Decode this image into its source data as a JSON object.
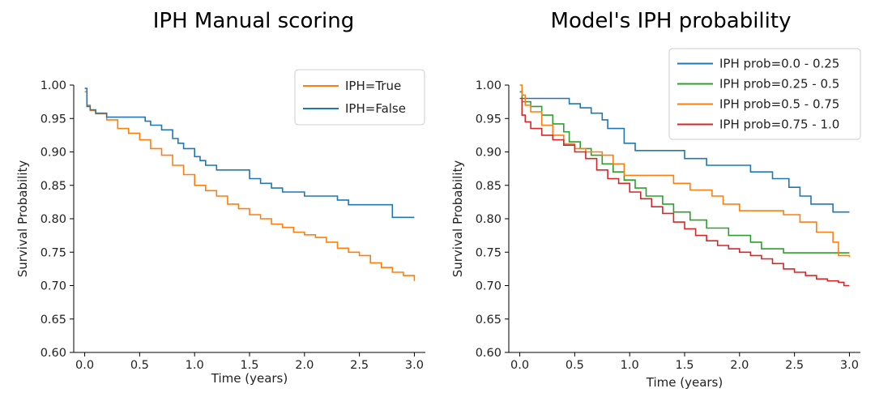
{
  "chart_data": [
    {
      "type": "line",
      "step": true,
      "title": "IPH Manual scoring",
      "xlabel": "Time (years)",
      "ylabel": "Survival Probability",
      "xlim": [
        -0.1,
        3.1
      ],
      "ylim": [
        0.6,
        1.0
      ],
      "xticks": [
        "0.0",
        "0.5",
        "1.0",
        "1.5",
        "2.0",
        "2.5",
        "3.0"
      ],
      "yticks": [
        "0.60",
        "0.65",
        "0.70",
        "0.75",
        "0.80",
        "0.85",
        "0.90",
        "0.95",
        "1.00"
      ],
      "grid": false,
      "legend": "top-right",
      "series": [
        {
          "name": "IPH=True",
          "color": "#ff7f0e",
          "x": [
            0.0,
            0.02,
            0.05,
            0.1,
            0.2,
            0.3,
            0.4,
            0.5,
            0.6,
            0.7,
            0.8,
            0.9,
            1.0,
            1.1,
            1.2,
            1.3,
            1.4,
            1.5,
            1.6,
            1.7,
            1.8,
            1.9,
            2.0,
            2.1,
            2.2,
            2.3,
            2.4,
            2.5,
            2.6,
            2.7,
            2.8,
            2.9,
            3.0
          ],
          "y": [
            0.99,
            0.97,
            0.962,
            0.957,
            0.948,
            0.935,
            0.928,
            0.918,
            0.905,
            0.895,
            0.88,
            0.866,
            0.85,
            0.842,
            0.834,
            0.822,
            0.815,
            0.806,
            0.8,
            0.792,
            0.787,
            0.78,
            0.776,
            0.772,
            0.765,
            0.756,
            0.75,
            0.745,
            0.734,
            0.727,
            0.72,
            0.715,
            0.707
          ]
        },
        {
          "name": "IPH=False",
          "color": "#1f77b4",
          "x": [
            0.0,
            0.02,
            0.05,
            0.1,
            0.2,
            0.55,
            0.6,
            0.7,
            0.8,
            0.85,
            0.9,
            1.0,
            1.05,
            1.1,
            1.2,
            1.5,
            1.6,
            1.7,
            1.8,
            2.0,
            2.3,
            2.4,
            2.8,
            3.0
          ],
          "y": [
            0.995,
            0.968,
            0.963,
            0.958,
            0.952,
            0.946,
            0.94,
            0.933,
            0.92,
            0.913,
            0.905,
            0.893,
            0.887,
            0.88,
            0.873,
            0.86,
            0.853,
            0.846,
            0.84,
            0.834,
            0.828,
            0.821,
            0.802,
            0.802
          ]
        }
      ]
    },
    {
      "type": "line",
      "step": true,
      "title": "Model's IPH probability",
      "xlabel": "Time (years)",
      "ylabel": "Survival Probability",
      "xlim": [
        -0.1,
        3.1
      ],
      "ylim": [
        0.6,
        1.0
      ],
      "xticks": [
        "0.0",
        "0.5",
        "1.0",
        "1.5",
        "2.0",
        "2.5",
        "3.0"
      ],
      "yticks": [
        "0.60",
        "0.65",
        "0.70",
        "0.75",
        "0.80",
        "0.85",
        "0.90",
        "0.95",
        "1.00"
      ],
      "grid": false,
      "legend": "upper-right",
      "series": [
        {
          "name": "IPH prob=0.0 - 0.25",
          "color": "#1f77b4",
          "x": [
            0.0,
            0.02,
            0.3,
            0.45,
            0.55,
            0.65,
            0.75,
            0.8,
            0.95,
            1.05,
            1.5,
            1.7,
            2.1,
            2.3,
            2.45,
            2.55,
            2.65,
            2.85,
            3.0
          ],
          "y": [
            0.99,
            0.98,
            0.98,
            0.972,
            0.966,
            0.958,
            0.948,
            0.935,
            0.913,
            0.902,
            0.89,
            0.88,
            0.87,
            0.86,
            0.847,
            0.834,
            0.822,
            0.81,
            0.81
          ]
        },
        {
          "name": "IPH prob=0.25 - 0.5",
          "color": "#2ca02c",
          "x": [
            0.0,
            0.02,
            0.1,
            0.2,
            0.3,
            0.4,
            0.45,
            0.55,
            0.65,
            0.75,
            0.85,
            0.95,
            1.05,
            1.15,
            1.3,
            1.4,
            1.55,
            1.7,
            1.9,
            2.1,
            2.2,
            2.4,
            2.6,
            2.8,
            3.0
          ],
          "y": [
            0.99,
            0.975,
            0.968,
            0.955,
            0.942,
            0.93,
            0.915,
            0.905,
            0.895,
            0.882,
            0.87,
            0.858,
            0.846,
            0.834,
            0.822,
            0.81,
            0.798,
            0.786,
            0.775,
            0.765,
            0.755,
            0.749,
            0.749,
            0.749,
            0.749
          ]
        },
        {
          "name": "IPH prob=0.5 - 0.75",
          "color": "#ff7f0e",
          "x": [
            0.0,
            0.02,
            0.05,
            0.1,
            0.2,
            0.3,
            0.4,
            0.5,
            0.6,
            0.75,
            0.85,
            0.95,
            1.3,
            1.4,
            1.55,
            1.75,
            1.85,
            2.0,
            2.2,
            2.4,
            2.55,
            2.7,
            2.85,
            2.9,
            3.0
          ],
          "y": [
            1.0,
            0.985,
            0.97,
            0.96,
            0.94,
            0.925,
            0.912,
            0.905,
            0.9,
            0.895,
            0.882,
            0.865,
            0.865,
            0.853,
            0.843,
            0.834,
            0.822,
            0.812,
            0.812,
            0.806,
            0.795,
            0.78,
            0.765,
            0.745,
            0.743
          ]
        },
        {
          "name": "IPH prob=0.75 - 1.0",
          "color": "#d62728",
          "x": [
            0.0,
            0.02,
            0.05,
            0.1,
            0.2,
            0.3,
            0.4,
            0.5,
            0.6,
            0.7,
            0.8,
            0.9,
            1.0,
            1.1,
            1.2,
            1.3,
            1.4,
            1.5,
            1.6,
            1.7,
            1.8,
            1.9,
            2.0,
            2.1,
            2.2,
            2.3,
            2.4,
            2.5,
            2.6,
            2.7,
            2.8,
            2.9,
            2.95,
            3.0
          ],
          "y": [
            0.98,
            0.955,
            0.945,
            0.935,
            0.925,
            0.918,
            0.91,
            0.9,
            0.89,
            0.873,
            0.86,
            0.853,
            0.84,
            0.83,
            0.818,
            0.808,
            0.795,
            0.785,
            0.775,
            0.767,
            0.76,
            0.755,
            0.75,
            0.745,
            0.74,
            0.733,
            0.725,
            0.72,
            0.715,
            0.71,
            0.707,
            0.705,
            0.7,
            0.7
          ]
        }
      ]
    }
  ]
}
